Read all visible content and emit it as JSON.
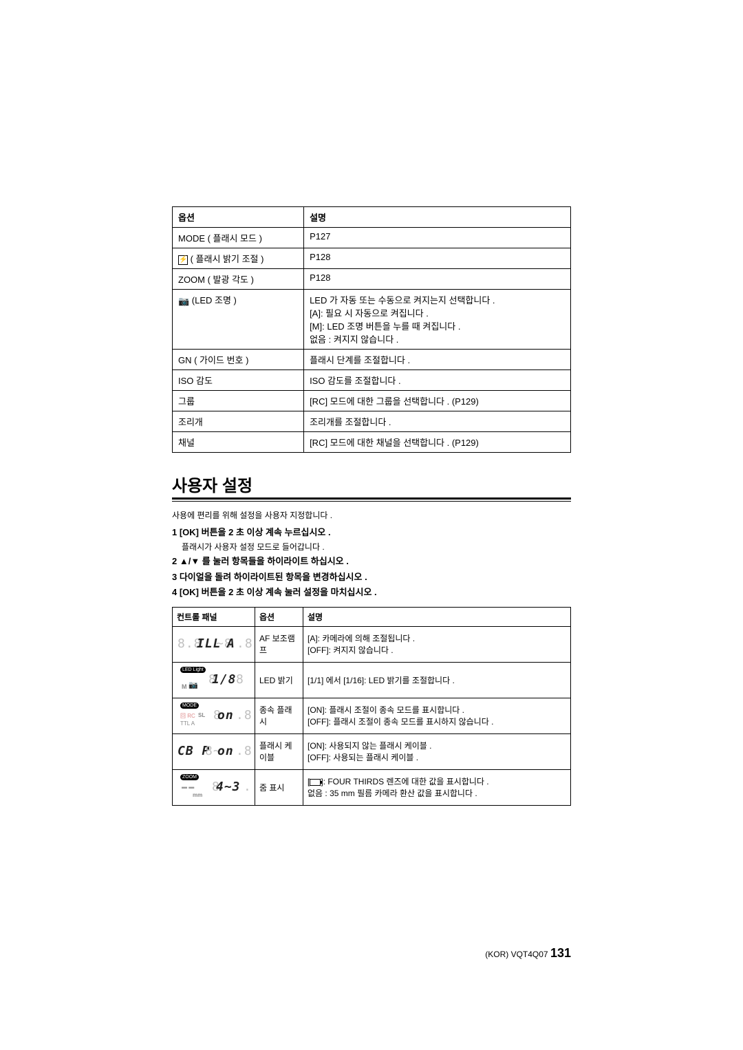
{
  "table1": {
    "headers": [
      "옵션",
      "설명"
    ],
    "rows": [
      {
        "opt": "MODE ( 플래시 모드 )",
        "desc": "P127",
        "icon": null
      },
      {
        "opt": " ( 플래시 밝기 조절 )",
        "desc": "P128",
        "icon": "bolt"
      },
      {
        "opt": "ZOOM ( 발광 각도 )",
        "desc": "P128",
        "icon": null
      },
      {
        "opt": " (LED 조명 )",
        "desc": "LED 가 자동 또는 수동으로 켜지는지 선택합니다 .\n[A]: 필요 시 자동으로 켜집니다 .\n[M]: LED 조명 버튼을 누를 때 켜집니다 .\n없음 : 켜지지 않습니다 .",
        "icon": "camera"
      },
      {
        "opt": "GN ( 가이드 번호 )",
        "desc": "플래시 단계를 조절합니다 .",
        "icon": null
      },
      {
        "opt": "ISO 감도",
        "desc": "ISO 감도를 조절합니다 .",
        "icon": null
      },
      {
        "opt": "그룹",
        "desc": "[RC] 모드에 대한 그룹을 선택합니다 . (P129)",
        "icon": null
      },
      {
        "opt": "조리개",
        "desc": "조리개를 조절합니다 .",
        "icon": null
      },
      {
        "opt": "채널",
        "desc": "[RC] 모드에 대한 채널을 선택합니다 . (P129)",
        "icon": null
      }
    ]
  },
  "section_title": "사용자 설정",
  "intro": "사용에 편리를 위해 설정을 사용자 지정합니다 .",
  "steps": [
    {
      "n": "1",
      "text": "[OK] 버튼을 2 초 이상 계속 누르십시오 .",
      "sub": "플래시가 사용자 설정 모드로 들어갑니다 ."
    },
    {
      "n": "2",
      "text": "▲/▼ 를 눌러 항목들을 하이라이트 하십시오 .",
      "sub": null
    },
    {
      "n": "3",
      "text": "다이얼을 돌려 하이라이트된 항목을 변경하십시오 .",
      "sub": null
    },
    {
      "n": "4",
      "text": "[OK] 버튼을 2 초 이상 계속 눌러 설정을 마치십시오 .",
      "sub": null
    }
  ],
  "table2": {
    "headers": [
      "컨트롤 패널",
      "옵션",
      "설명"
    ],
    "rows": [
      {
        "panel": {
          "type": "af",
          "top_text": "8.8ILL~8R.8",
          "dark": "ILL",
          "dark2": "A"
        },
        "opt": "AF 보조램프",
        "desc": "[A]: 카메라에 의해 조절됩니다 .\n[OFF]: 켜지지 않습니다 ."
      },
      {
        "panel": {
          "type": "led",
          "badge": "LED Light",
          "seg": "1/8",
          "sub": "M"
        },
        "opt": "LED 밝기",
        "desc": "[1/1] 에서 [1/16]: LED 밝기를 조절합니다 ."
      },
      {
        "panel": {
          "type": "mode",
          "badge": "MODE",
          "tiny": "SL",
          "seg": "on",
          "tiny2": "TTL A"
        },
        "opt": "종속 플래시",
        "desc": "[ON]: 플래시 조절이 종속 모드를 표시합니다 .\n[OFF]: 플래시 조절이 종속 모드를 표시하지 않습니다 ."
      },
      {
        "panel": {
          "type": "cable",
          "seg": "CB.P8~on.8",
          "dark": "CB P",
          "dark2": "on"
        },
        "opt": "플래시 케이블",
        "desc": "[ON]: 사용되지 않는 플래시 케이블 .\n[OFF]: 사용되는 플래시 케이블 ."
      },
      {
        "panel": {
          "type": "zoom",
          "badge": "ZOOM",
          "seg": "4~3",
          "sub": "mm"
        },
        "opt": "줌 표시",
        "desc_pre": "[",
        "desc_post": "]: FOUR THIRDS 렌즈에 대한 값을 표시합니다 .\n없음 : 35 mm 필름 카메라 환산 값을 표시합니다 ."
      }
    ]
  },
  "footer": {
    "prefix": "(KOR) VQT4Q07",
    "page": "131"
  },
  "colors": {
    "text": "#000000",
    "lcd_gray": "#c0c0c0",
    "lcd_dark": "#222222"
  }
}
